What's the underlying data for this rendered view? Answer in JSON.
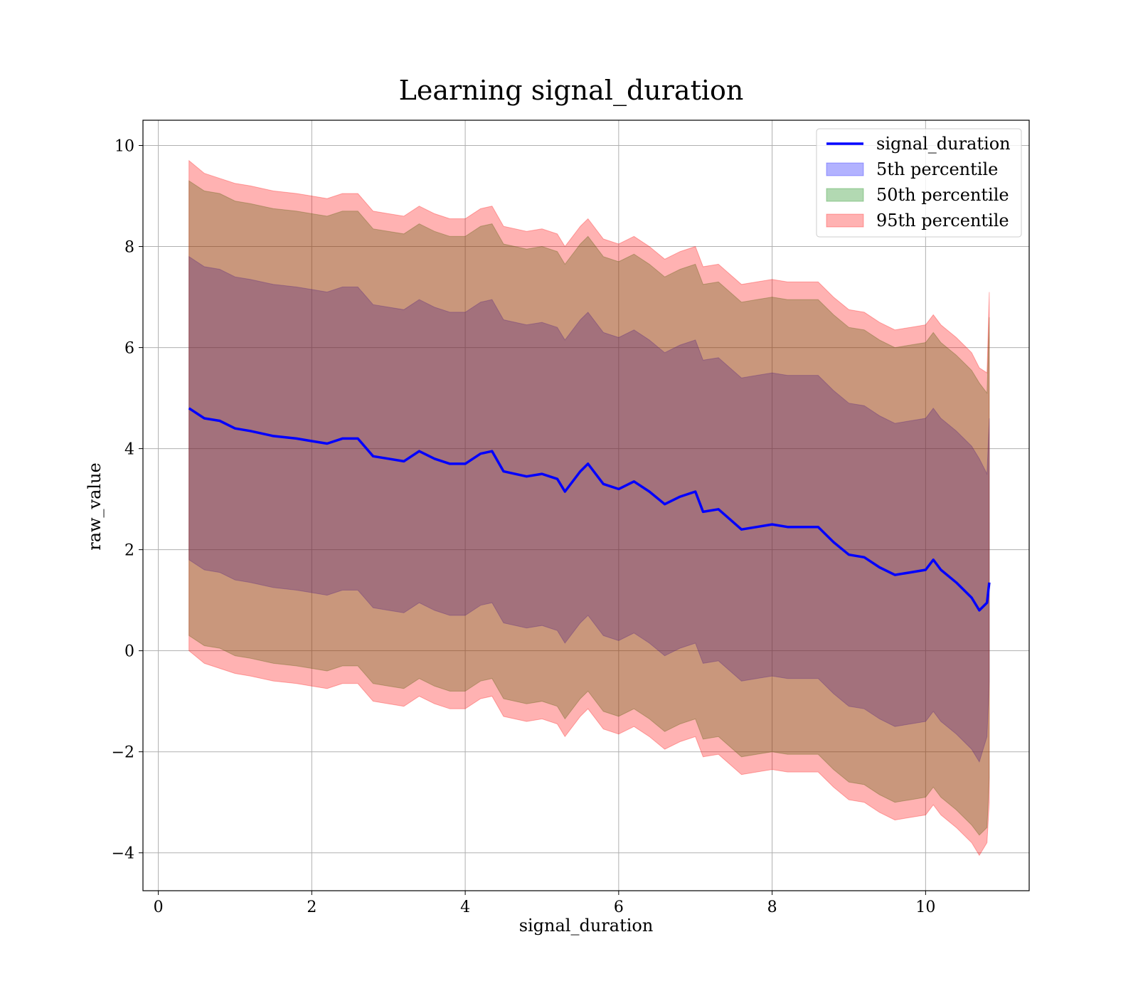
{
  "chart_data": {
    "type": "area",
    "title": "Learning signal_duration",
    "xlabel": "signal_duration",
    "ylabel": "raw_value",
    "xlim": [
      -0.2,
      11.35
    ],
    "ylim": [
      -4.75,
      10.5
    ],
    "xticks": [
      0,
      2,
      4,
      6,
      8,
      10
    ],
    "xtick_labels": [
      "0",
      "2",
      "4",
      "6",
      "8",
      "10"
    ],
    "yticks": [
      -4,
      -2,
      0,
      2,
      4,
      6,
      8,
      10
    ],
    "ytick_labels": [
      "−4",
      "−2",
      "0",
      "2",
      "4",
      "6",
      "8",
      "10"
    ],
    "grid": true,
    "legend_position": "top-right",
    "x": [
      0.4,
      0.6,
      0.8,
      1.0,
      1.2,
      1.5,
      1.8,
      2.0,
      2.2,
      2.4,
      2.6,
      2.8,
      3.0,
      3.2,
      3.4,
      3.6,
      3.8,
      4.0,
      4.2,
      4.35,
      4.5,
      4.8,
      5.0,
      5.2,
      5.3,
      5.5,
      5.6,
      5.8,
      6.0,
      6.2,
      6.4,
      6.6,
      6.8,
      7.0,
      7.1,
      7.3,
      7.6,
      7.8,
      8.0,
      8.2,
      8.4,
      8.6,
      8.8,
      9.0,
      9.2,
      9.4,
      9.6,
      9.8,
      10.0,
      10.1,
      10.2,
      10.4,
      10.6,
      10.7,
      10.8,
      10.83
    ],
    "series": [
      {
        "name": "signal_duration",
        "kind": "line",
        "color": "#0000ff",
        "values": [
          4.8,
          4.6,
          4.55,
          4.4,
          4.35,
          4.25,
          4.2,
          4.15,
          4.1,
          4.2,
          4.2,
          3.85,
          3.8,
          3.75,
          3.95,
          3.8,
          3.7,
          3.7,
          3.9,
          3.95,
          3.55,
          3.45,
          3.5,
          3.4,
          3.15,
          3.55,
          3.7,
          3.3,
          3.2,
          3.35,
          3.15,
          2.9,
          3.05,
          3.15,
          2.75,
          2.8,
          2.4,
          2.45,
          2.5,
          2.45,
          2.45,
          2.45,
          2.15,
          1.9,
          1.85,
          1.65,
          1.5,
          1.55,
          1.6,
          1.8,
          1.6,
          1.35,
          1.05,
          0.8,
          0.95,
          1.35
        ]
      },
      {
        "name": "5th percentile",
        "kind": "band",
        "color": "#0000ff",
        "lower": [
          1.8,
          1.6,
          1.55,
          1.4,
          1.35,
          1.25,
          1.2,
          1.15,
          1.1,
          1.2,
          1.2,
          0.85,
          0.8,
          0.75,
          0.95,
          0.8,
          0.7,
          0.7,
          0.9,
          0.95,
          0.55,
          0.45,
          0.5,
          0.4,
          0.15,
          0.55,
          0.7,
          0.3,
          0.2,
          0.35,
          0.15,
          -0.1,
          0.05,
          0.15,
          -0.25,
          -0.2,
          -0.6,
          -0.55,
          -0.5,
          -0.55,
          -0.55,
          -0.55,
          -0.85,
          -1.1,
          -1.15,
          -1.35,
          -1.5,
          -1.45,
          -1.4,
          -1.2,
          -1.4,
          -1.65,
          -1.95,
          -2.2,
          -1.7,
          -0.6
        ],
        "upper": [
          7.8,
          7.6,
          7.55,
          7.4,
          7.35,
          7.25,
          7.2,
          7.15,
          7.1,
          7.2,
          7.2,
          6.85,
          6.8,
          6.75,
          6.95,
          6.8,
          6.7,
          6.7,
          6.9,
          6.95,
          6.55,
          6.45,
          6.5,
          6.4,
          6.15,
          6.55,
          6.7,
          6.3,
          6.2,
          6.35,
          6.15,
          5.9,
          6.05,
          6.15,
          5.75,
          5.8,
          5.4,
          5.45,
          5.5,
          5.45,
          5.45,
          5.45,
          5.15,
          4.9,
          4.85,
          4.65,
          4.5,
          4.55,
          4.6,
          4.8,
          4.6,
          4.35,
          4.05,
          3.8,
          3.5,
          4.6
        ]
      },
      {
        "name": "50th percentile",
        "kind": "band",
        "color": "#008000",
        "lower": [
          0.3,
          0.1,
          0.05,
          -0.1,
          -0.15,
          -0.25,
          -0.3,
          -0.35,
          -0.4,
          -0.3,
          -0.3,
          -0.65,
          -0.7,
          -0.75,
          -0.55,
          -0.7,
          -0.8,
          -0.8,
          -0.6,
          -0.55,
          -0.95,
          -1.05,
          -1.0,
          -1.1,
          -1.35,
          -0.95,
          -0.8,
          -1.2,
          -1.3,
          -1.15,
          -1.35,
          -1.6,
          -1.45,
          -1.35,
          -1.75,
          -1.7,
          -2.1,
          -2.05,
          -2.0,
          -2.05,
          -2.05,
          -2.05,
          -2.35,
          -2.6,
          -2.65,
          -2.85,
          -3.0,
          -2.95,
          -2.9,
          -2.7,
          -2.9,
          -3.15,
          -3.45,
          -3.65,
          -3.5,
          -2.5
        ],
        "upper": [
          9.3,
          9.1,
          9.05,
          8.9,
          8.85,
          8.75,
          8.7,
          8.65,
          8.6,
          8.7,
          8.7,
          8.35,
          8.3,
          8.25,
          8.45,
          8.3,
          8.2,
          8.2,
          8.4,
          8.45,
          8.05,
          7.95,
          8.0,
          7.9,
          7.65,
          8.05,
          8.2,
          7.8,
          7.7,
          7.85,
          7.65,
          7.4,
          7.55,
          7.65,
          7.25,
          7.3,
          6.9,
          6.95,
          7.0,
          6.95,
          6.95,
          6.95,
          6.65,
          6.4,
          6.35,
          6.15,
          6.0,
          6.05,
          6.1,
          6.3,
          6.1,
          5.85,
          5.55,
          5.3,
          5.1,
          6.6
        ]
      },
      {
        "name": "95th percentile",
        "kind": "band",
        "color": "#ff0000",
        "lower": [
          0.0,
          -0.25,
          -0.35,
          -0.45,
          -0.5,
          -0.6,
          -0.65,
          -0.7,
          -0.75,
          -0.65,
          -0.65,
          -1.0,
          -1.05,
          -1.1,
          -0.9,
          -1.05,
          -1.15,
          -1.15,
          -0.95,
          -0.9,
          -1.3,
          -1.4,
          -1.35,
          -1.45,
          -1.7,
          -1.3,
          -1.15,
          -1.55,
          -1.65,
          -1.5,
          -1.7,
          -1.95,
          -1.8,
          -1.7,
          -2.1,
          -2.05,
          -2.45,
          -2.4,
          -2.35,
          -2.4,
          -2.4,
          -2.4,
          -2.7,
          -2.95,
          -3.0,
          -3.2,
          -3.35,
          -3.3,
          -3.25,
          -3.05,
          -3.25,
          -3.5,
          -3.8,
          -4.05,
          -3.8,
          -3.0
        ],
        "upper": [
          9.7,
          9.45,
          9.35,
          9.25,
          9.2,
          9.1,
          9.05,
          9.0,
          8.95,
          9.05,
          9.05,
          8.7,
          8.65,
          8.6,
          8.8,
          8.65,
          8.55,
          8.55,
          8.75,
          8.8,
          8.4,
          8.3,
          8.35,
          8.25,
          8.0,
          8.4,
          8.55,
          8.15,
          8.05,
          8.2,
          8.0,
          7.75,
          7.9,
          8.0,
          7.6,
          7.65,
          7.25,
          7.3,
          7.35,
          7.3,
          7.3,
          7.3,
          7.0,
          6.75,
          6.7,
          6.5,
          6.35,
          6.4,
          6.45,
          6.65,
          6.45,
          6.2,
          5.9,
          5.6,
          5.5,
          7.1
        ]
      }
    ]
  }
}
